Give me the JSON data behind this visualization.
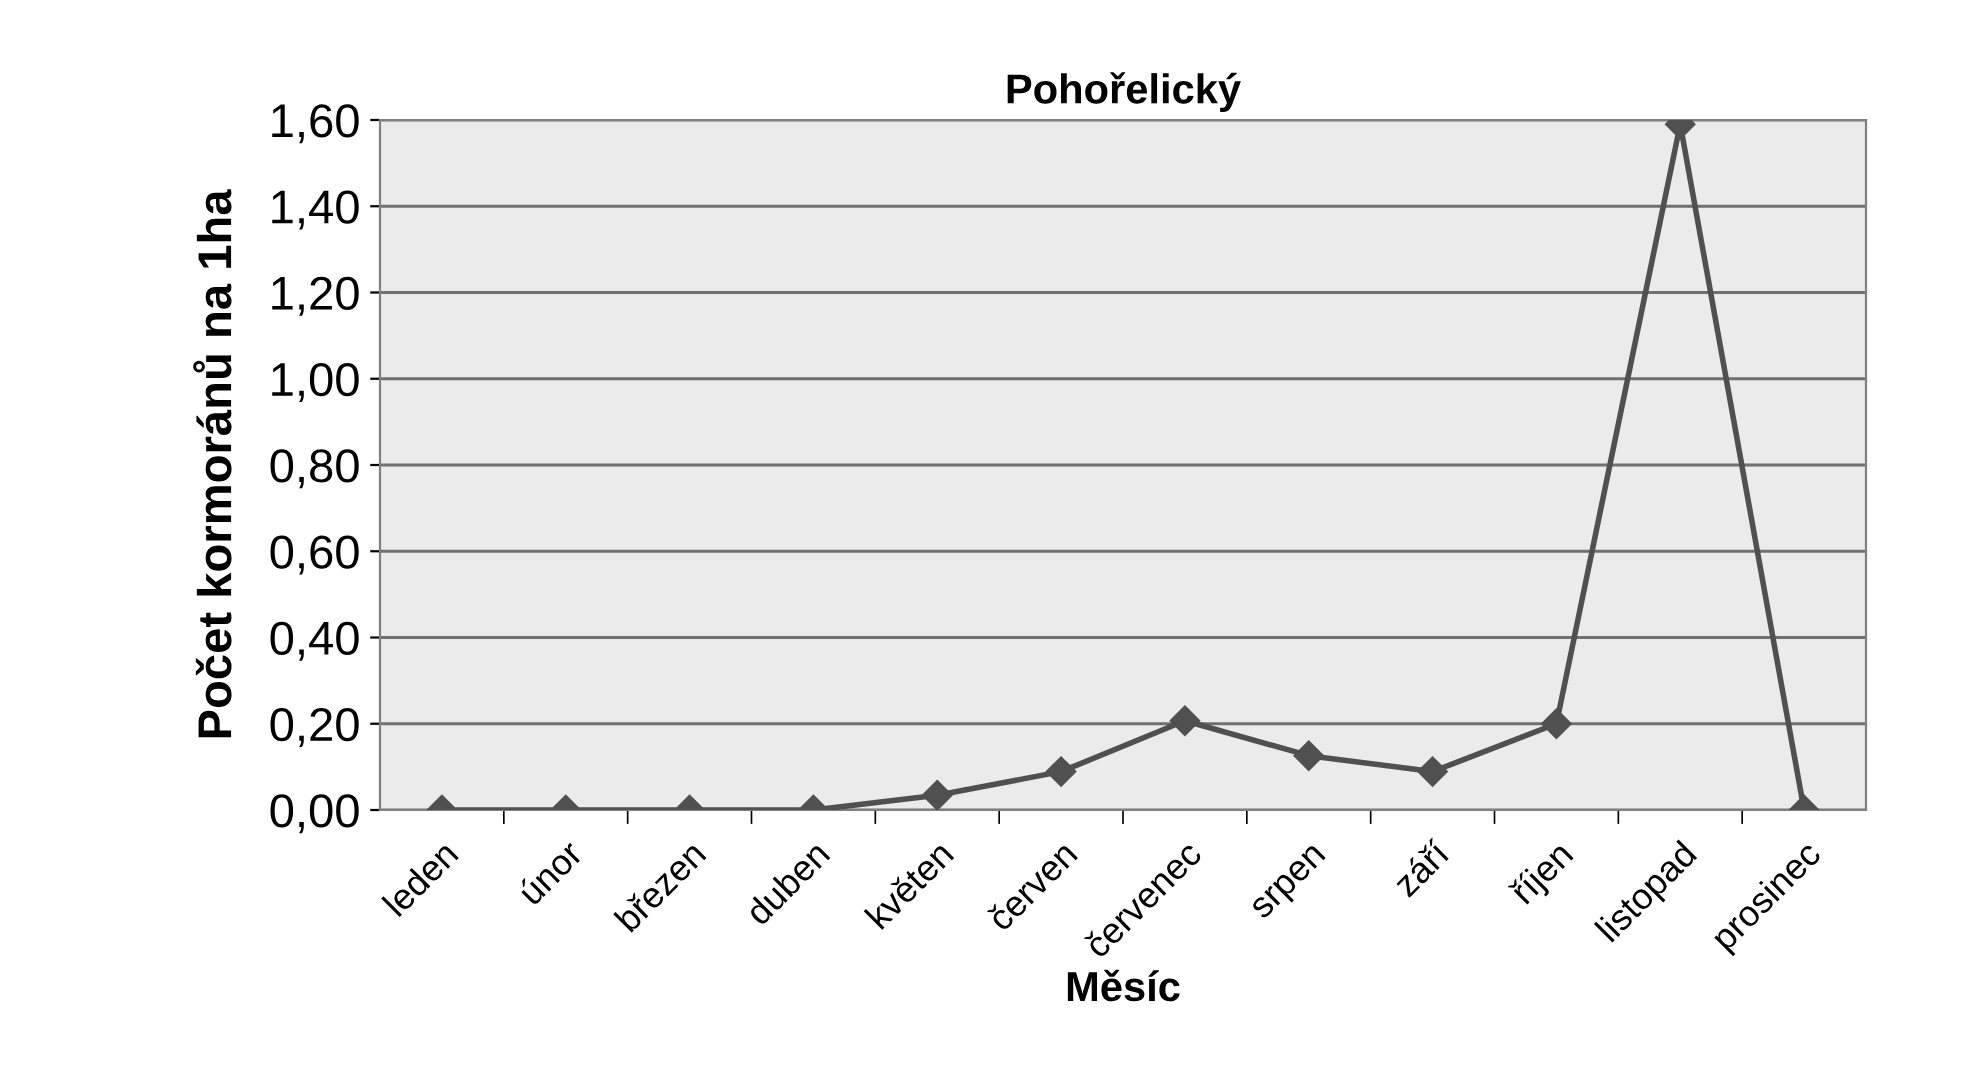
{
  "chart_data": {
    "type": "line",
    "title": "Pohořelický",
    "xlabel": "Měsíc",
    "ylabel": "Počet kormoránů na 1ha",
    "categories": [
      "leden",
      "únor",
      "březen",
      "duben",
      "květen",
      "červen",
      "červenec",
      "srpen",
      "září",
      "říjen",
      "listopad",
      "prosinec"
    ],
    "series": [
      {
        "color": "#505050",
        "values": [
          0,
          0,
          0,
          0,
          0.034,
          0.089,
          0.207,
          0.126,
          0.089,
          0.2,
          1.59,
          0
        ]
      }
    ],
    "ylim": [
      0,
      1.6
    ],
    "yticks": [
      {
        "value": 0,
        "label": "0,00"
      },
      {
        "value": 0.2,
        "label": "0,20"
      },
      {
        "value": 0.4,
        "label": "0,40"
      },
      {
        "value": 0.6,
        "label": "0,60"
      },
      {
        "value": 0.8,
        "label": "0,80"
      },
      {
        "value": 1.0,
        "label": "1,00"
      },
      {
        "value": 1.2,
        "label": "1,20"
      },
      {
        "value": 1.4,
        "label": "1,40"
      },
      {
        "value": 1.6,
        "label": "1,60"
      }
    ],
    "grid": "y",
    "marker": "diamond",
    "line_style": "solid",
    "legend": false
  }
}
